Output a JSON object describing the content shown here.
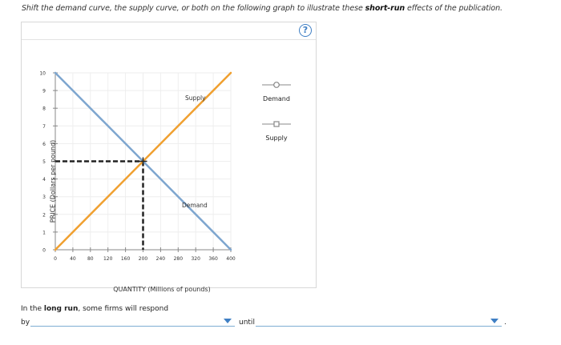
{
  "instruction": {
    "prefix": "Shift the demand curve, the supply curve, or both on the following graph to illustrate these ",
    "bold": "short-run",
    "suffix": " effects of the publication."
  },
  "panel": {
    "help_label": "?"
  },
  "legend": {
    "items": [
      {
        "label": "Demand",
        "marker": "circle"
      },
      {
        "label": "Supply",
        "marker": "square"
      }
    ]
  },
  "chart_data": {
    "type": "line",
    "title": "",
    "xlabel": "QUANTITY (Millions of pounds)",
    "ylabel": "PRICE (Dollars per pound)",
    "xlim": [
      0,
      400
    ],
    "ylim": [
      0,
      10
    ],
    "x_ticks": [
      0,
      40,
      80,
      120,
      160,
      200,
      240,
      280,
      320,
      360,
      400
    ],
    "y_ticks": [
      0,
      1,
      2,
      3,
      4,
      5,
      6,
      7,
      8,
      9,
      10
    ],
    "grid": true,
    "legend_position": "right",
    "series": [
      {
        "name": "Demand",
        "color": "#7ea6cf",
        "points": [
          [
            0,
            10
          ],
          [
            400,
            0
          ]
        ],
        "label_at": [
          200,
          5
        ]
      },
      {
        "name": "Supply",
        "color": "#f0a030",
        "points": [
          [
            0,
            0
          ],
          [
            400,
            10
          ]
        ],
        "label_at": [
          320,
          8
        ]
      }
    ],
    "annotations": [
      {
        "type": "equilibrium",
        "x": 200,
        "y": 5,
        "dashed_guides": true,
        "guide_color": "#222222"
      }
    ]
  },
  "long_run": {
    "sentence_prefix": "In the ",
    "sentence_bold": "long run",
    "sentence_suffix": ", some firms will respond",
    "by_label": "by",
    "until_label": "until",
    "end_punct": ".",
    "dropdown1_value": "",
    "dropdown2_value": ""
  }
}
